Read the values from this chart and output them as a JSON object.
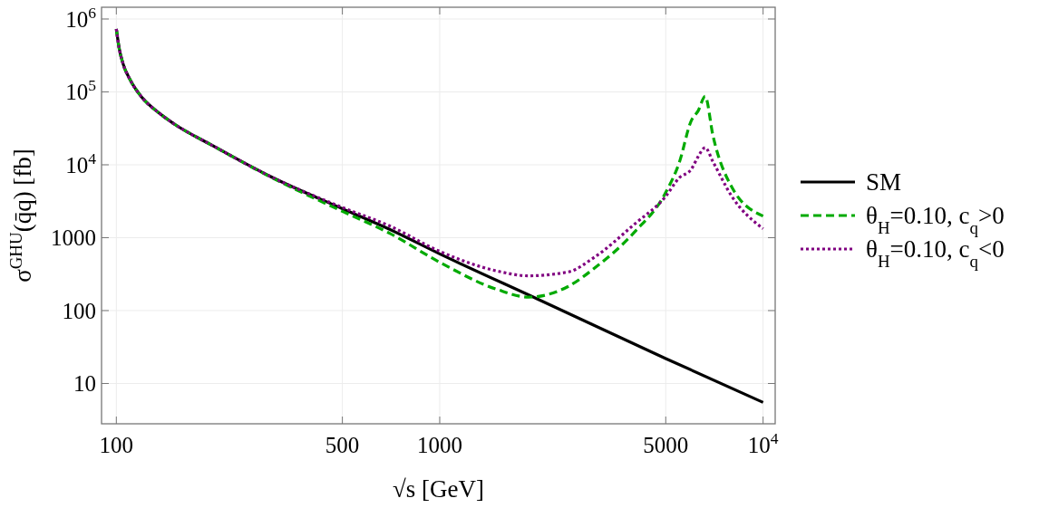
{
  "chart_data": {
    "type": "line",
    "xlabel": "√s [GeV]",
    "ylabel": "σ$^{GHU}$(q̄q) [fb]",
    "log": "xy",
    "grid": true,
    "legend": "right",
    "xlim": [
      90,
      10900
    ],
    "ylim": [
      2.8,
      1450000
    ],
    "xticks": [
      100,
      500,
      1000,
      5000,
      {
        "value": 10000,
        "label": "10$^{4}$"
      }
    ],
    "yticks": [
      10,
      100,
      1000,
      {
        "value": 10000,
        "label": "10$^{4}$"
      },
      {
        "value": 100000,
        "label": "10$^{5}$"
      },
      {
        "value": 1000000,
        "label": "10$^{6}$"
      }
    ],
    "series": [
      {
        "name": "SM",
        "color": "#000000",
        "line_style": "solid",
        "x": [
          100,
          102,
          105,
          110,
          120,
          135,
          150,
          200,
          300,
          500,
          700,
          1000,
          2000,
          5000,
          10000
        ],
        "values": [
          730000,
          400000,
          240000,
          150000,
          84000,
          52000,
          37000,
          18000,
          6900,
          2500,
          1300,
          600,
          145,
          22,
          5.5
        ]
      },
      {
        "name": "θ$_{H}$=0.10, c$_{q}$>0",
        "color": "#00aa00",
        "line_style": "dashed",
        "x": [
          100,
          102,
          105,
          110,
          120,
          135,
          150,
          200,
          300,
          500,
          700,
          1000,
          1500,
          1880,
          2500,
          3000,
          4000,
          5000,
          5500,
          6000,
          6300,
          6620,
          7000,
          8000,
          10000
        ],
        "values": [
          730000,
          400000,
          240000,
          150000,
          84000,
          52000,
          37000,
          18000,
          6800,
          2300,
          1150,
          460,
          196,
          153,
          215,
          378,
          1190,
          4170,
          10600,
          40500,
          55000,
          87000,
          25000,
          4950,
          1980
        ]
      },
      {
        "name": "θ$_{H}$=0.10, c$_{q}$<0",
        "color": "#800080",
        "line_style": "dotted",
        "x": [
          100,
          102,
          105,
          110,
          120,
          135,
          150,
          200,
          300,
          500,
          700,
          1000,
          1500,
          1880,
          2500,
          3000,
          4000,
          5000,
          5500,
          6000,
          6300,
          6620,
          7000,
          8000,
          10000
        ],
        "values": [
          730000,
          400000,
          240000,
          150000,
          84000,
          52000,
          37000,
          18000,
          6900,
          2600,
          1450,
          650,
          350,
          300,
          340,
          534,
          1530,
          3700,
          6600,
          8700,
          13000,
          17200,
          11000,
          3700,
          1330
        ]
      }
    ]
  }
}
